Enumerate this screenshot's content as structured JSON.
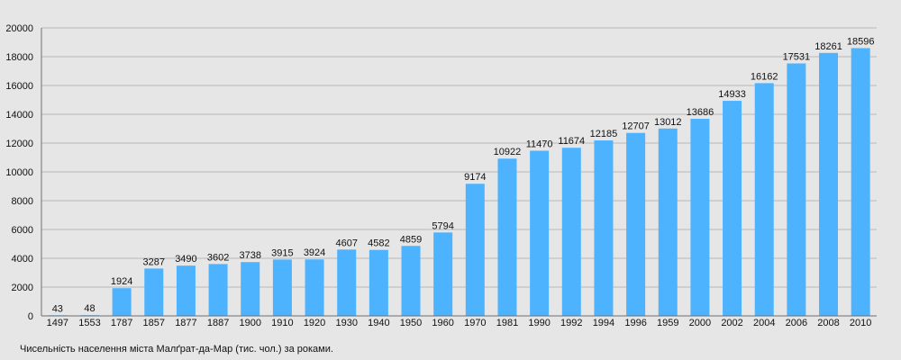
{
  "caption": "Чисельність населення міста Малґрат-да-Мар (тис. чол.) за роками.",
  "colors": {
    "bar": "#4db3ff",
    "grid": "#b8b8b8",
    "axis": "#6f6f6f",
    "text": "#111111",
    "background": "#e6e6e6"
  },
  "chart_data": {
    "type": "bar",
    "categories": [
      "1497",
      "1553",
      "1787",
      "1857",
      "1877",
      "1887",
      "1900",
      "1910",
      "1920",
      "1930",
      "1940",
      "1950",
      "1960",
      "1970",
      "1981",
      "1990",
      "1992",
      "1994",
      "1996",
      "1959",
      "2000",
      "2002",
      "2004",
      "2006",
      "2008",
      "2010"
    ],
    "values": [
      43,
      48,
      1924,
      3287,
      3490,
      3602,
      3738,
      3915,
      3924,
      4607,
      4582,
      4859,
      5794,
      9174,
      10922,
      11470,
      11674,
      12185,
      12707,
      13012,
      13686,
      14933,
      16162,
      17531,
      18261,
      18596
    ],
    "value_labels": [
      "43",
      "48",
      "1924",
      "3287",
      "3490",
      "3602",
      "3738",
      "3915",
      "3924",
      "4607",
      "4582",
      "4859",
      "5794",
      "9174",
      "10922",
      "11470",
      "11674",
      "12185",
      "12707",
      "13012",
      "13686",
      "14933",
      "16162",
      "17531",
      "18261",
      "18596"
    ],
    "ylim": [
      0,
      20000
    ],
    "yticks": [
      "0",
      "2000",
      "4000",
      "6000",
      "8000",
      "10000",
      "12000",
      "14000",
      "16000",
      "18000",
      "20000"
    ],
    "grid": true,
    "legend": "none"
  }
}
